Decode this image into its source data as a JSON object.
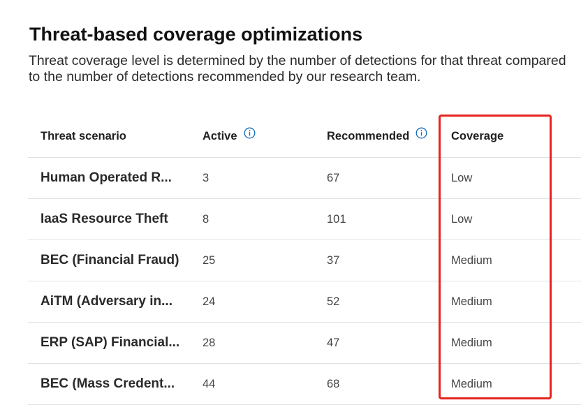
{
  "header": {
    "title": "Threat-based coverage optimizations",
    "description": "Threat coverage level is determined by the number of detections for that threat compared to the number of detections recommended by our research team."
  },
  "table": {
    "columns": {
      "scenario": "Threat scenario",
      "active": "Active",
      "recommended": "Recommended",
      "coverage": "Coverage"
    },
    "rows": [
      {
        "scenario": "Human Operated R...",
        "active": "3",
        "recommended": "67",
        "coverage": "Low"
      },
      {
        "scenario": "IaaS Resource Theft",
        "active": "8",
        "recommended": "101",
        "coverage": "Low"
      },
      {
        "scenario": "BEC (Financial Fraud)",
        "active": "25",
        "recommended": "37",
        "coverage": "Medium"
      },
      {
        "scenario": "AiTM (Adversary in...",
        "active": "24",
        "recommended": "52",
        "coverage": "Medium"
      },
      {
        "scenario": "ERP (SAP) Financial...",
        "active": "28",
        "recommended": "47",
        "coverage": "Medium"
      },
      {
        "scenario": "BEC (Mass Credent...",
        "active": "44",
        "recommended": "68",
        "coverage": "Medium"
      }
    ]
  },
  "icons": {
    "info": "info-icon"
  },
  "colors": {
    "highlight": "#e8231e",
    "info_icon": "#0f6cbd"
  }
}
